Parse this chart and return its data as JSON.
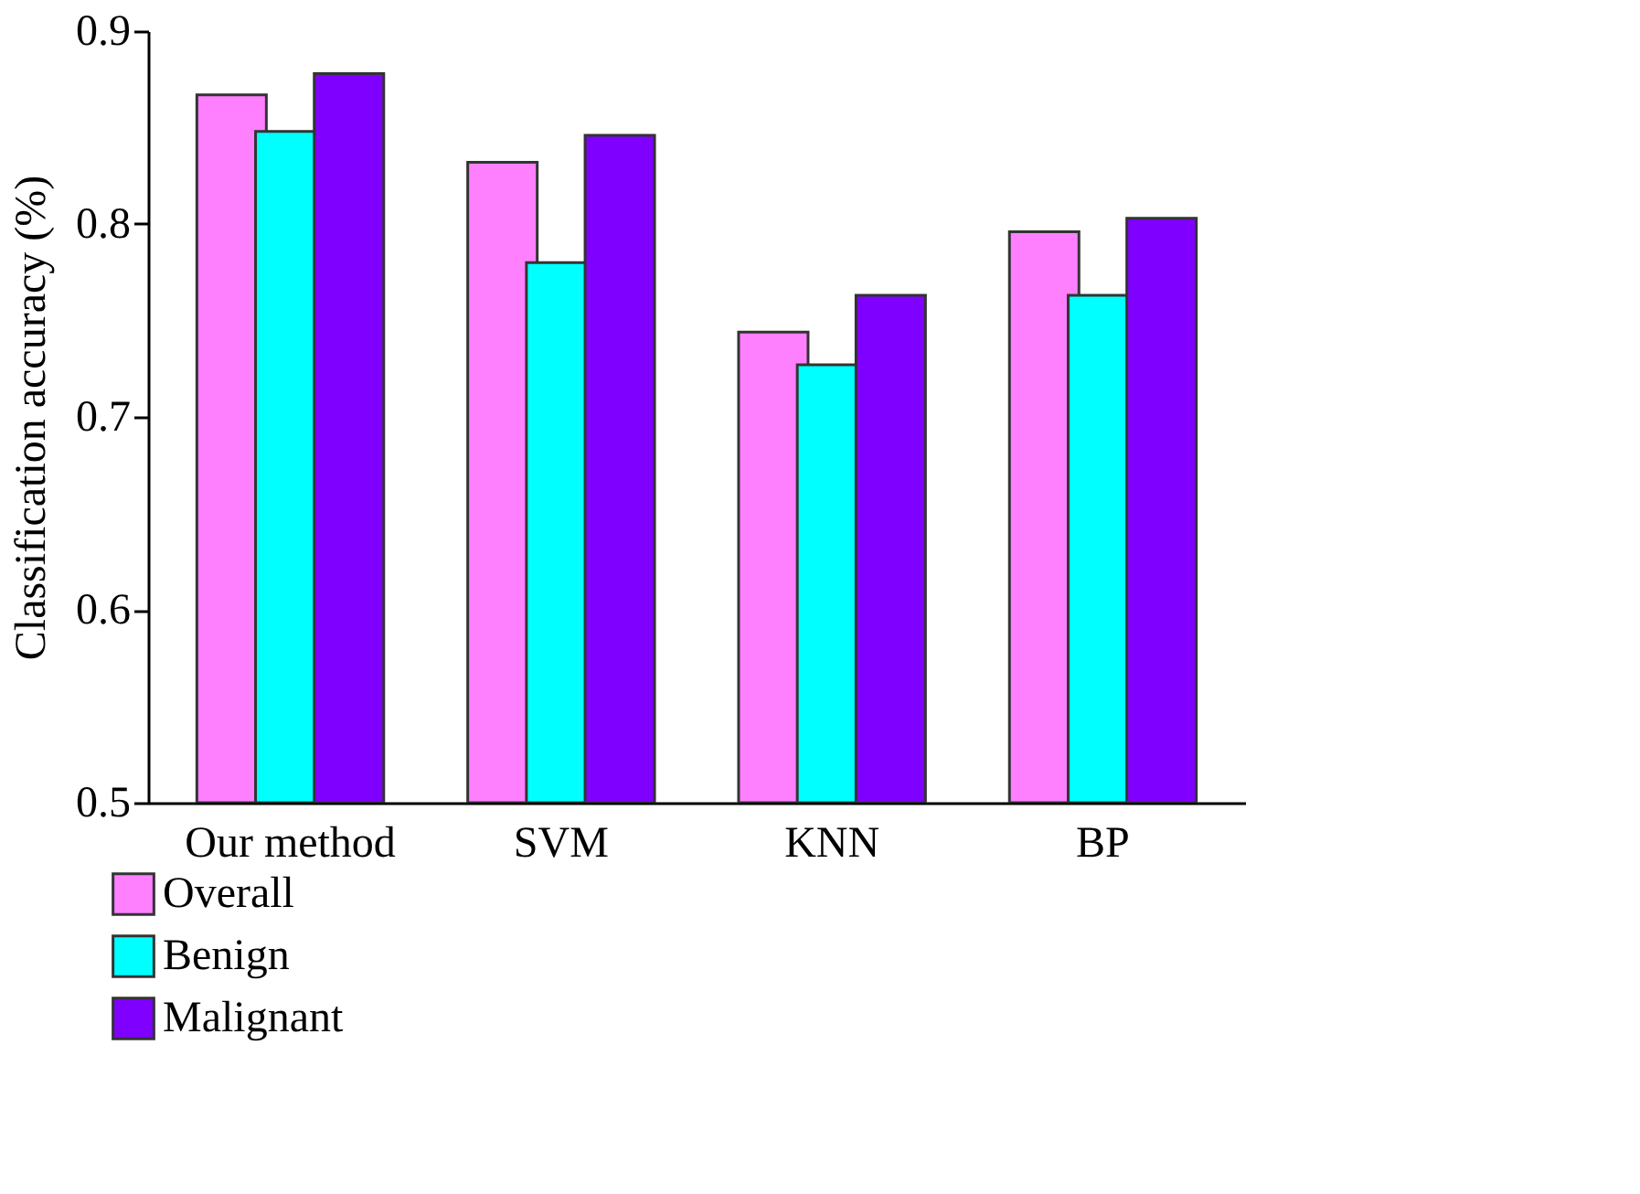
{
  "chart_data": {
    "type": "bar",
    "ylabel": "Classification accuracy (%)",
    "categories": [
      "Our method",
      "SVM",
      "KNN",
      "BP"
    ],
    "series": [
      {
        "name": "Overall",
        "color": "#ff80ff",
        "values": [
          0.867,
          0.832,
          0.744,
          0.796
        ]
      },
      {
        "name": "Benign",
        "color": "#00ffff",
        "values": [
          0.848,
          0.78,
          0.727,
          0.763
        ]
      },
      {
        "name": "Malignant",
        "color": "#8000ff",
        "values": [
          0.878,
          0.846,
          0.763,
          0.803
        ]
      }
    ],
    "ylim": [
      0.5,
      0.9
    ],
    "yticks": [
      0.5,
      0.6,
      0.7,
      0.8,
      0.9
    ],
    "grid": false,
    "legend": "bottom left"
  }
}
